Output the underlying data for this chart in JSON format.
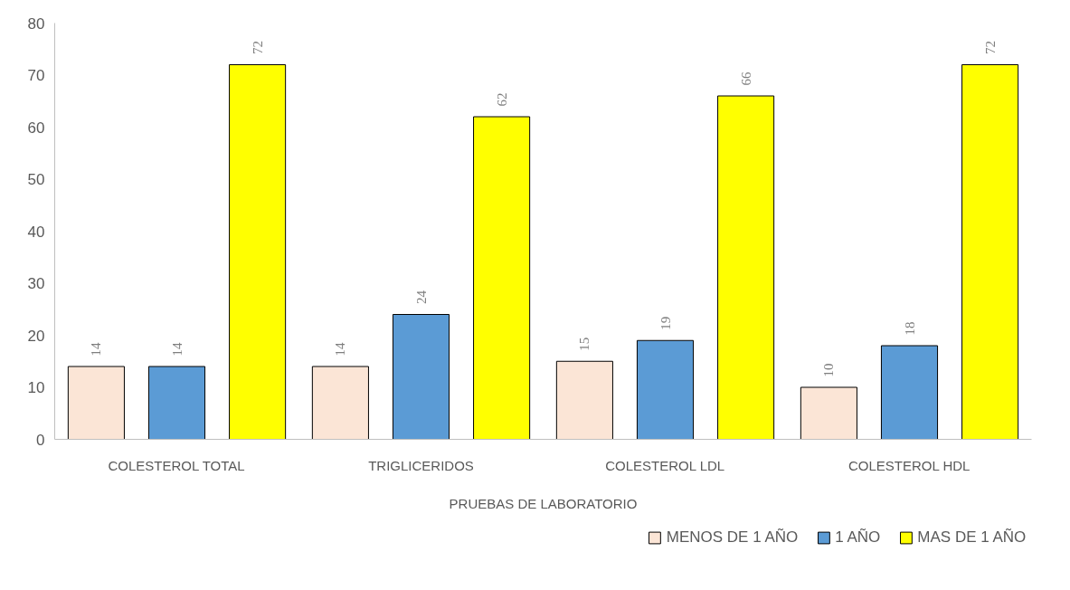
{
  "chart_data": {
    "type": "bar",
    "xlabel": "PRUEBAS DE LABORATORIO",
    "categories": [
      "COLESTEROL TOTAL",
      "TRIGLICERIDOS",
      "COLESTEROL LDL",
      "COLESTEROL HDL"
    ],
    "series": [
      {
        "name": "MENOS DE 1 AÑO",
        "color": "#fbe5d6",
        "values": [
          14,
          14,
          15,
          10
        ]
      },
      {
        "name": "1 AÑO",
        "color": "#5b9bd5",
        "values": [
          14,
          24,
          19,
          18
        ]
      },
      {
        "name": "MAS DE 1 AÑO",
        "color": "#ffff00",
        "values": [
          72,
          62,
          66,
          72
        ]
      }
    ],
    "ylim": [
      0,
      80
    ],
    "yticks": [
      0,
      10,
      20,
      30,
      40,
      50,
      60,
      70,
      80
    ],
    "grid": false,
    "legend": "bottom",
    "data_labels": true
  }
}
